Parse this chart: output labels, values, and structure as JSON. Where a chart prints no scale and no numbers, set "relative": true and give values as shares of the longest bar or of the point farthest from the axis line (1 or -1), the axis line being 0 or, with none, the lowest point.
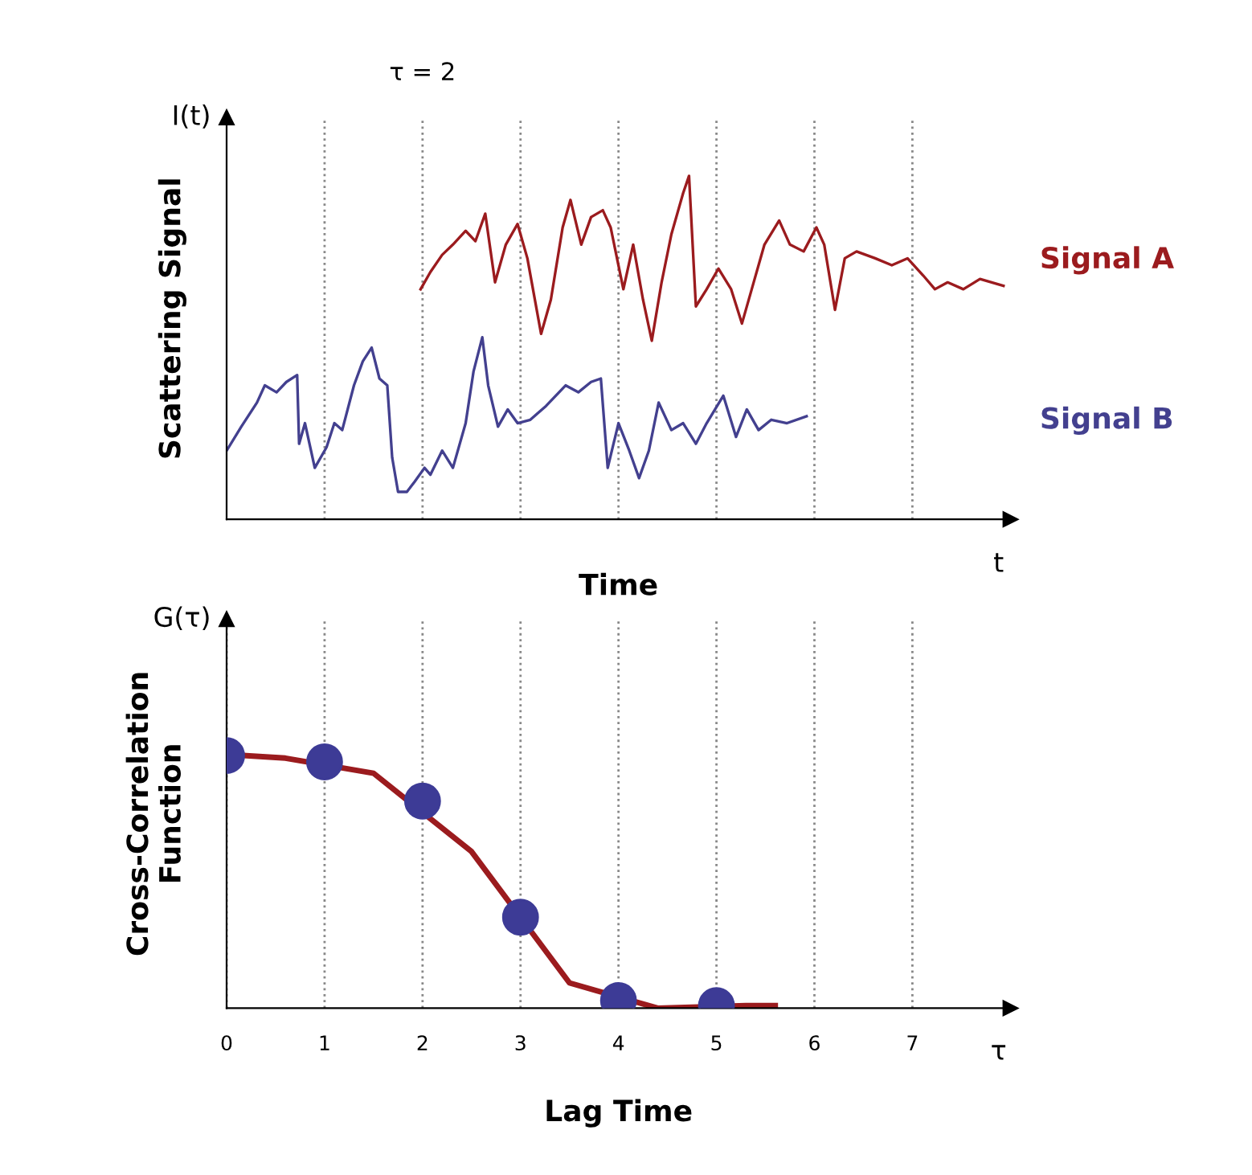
{
  "chart_data": [
    {
      "type": "line",
      "relative": true,
      "xlabel": "Time",
      "ylabel": "Scattering Signal",
      "annotations": [
        "I(t)",
        "t",
        "τ = 2"
      ],
      "xlim": [
        0,
        8
      ],
      "xticks": [
        {
          "value": 1,
          "label": null
        },
        {
          "value": 2,
          "label": null
        },
        {
          "value": 3,
          "label": null
        },
        {
          "value": 4,
          "label": null
        },
        {
          "value": 5,
          "label": null
        },
        {
          "value": 6,
          "label": null
        },
        {
          "value": 7,
          "label": null
        }
      ],
      "tick_labels": false,
      "grid": "x",
      "legend": false,
      "line_style": "solid",
      "series": [
        {
          "name": "Signal A",
          "color": "#9b1b1e",
          "x": [
            1.98,
            2.08,
            2.2,
            2.31,
            2.44,
            2.54,
            2.64,
            2.74,
            2.85,
            2.97,
            3.07,
            3.21,
            3.31,
            3.43,
            3.51,
            3.62,
            3.72,
            3.84,
            3.92,
            4.05,
            4.15,
            4.25,
            4.34,
            4.44,
            4.54,
            4.66,
            4.72,
            4.79,
            4.9,
            5.02,
            5.15,
            5.26,
            5.36,
            5.49,
            5.64,
            5.75,
            5.89,
            6.02,
            6.1,
            6.21,
            6.31,
            6.43,
            6.62,
            6.79,
            6.95,
            7.11,
            7.23,
            7.36,
            7.52,
            7.69,
            7.93
          ],
          "values": [
            0.67,
            0.72,
            0.77,
            0.8,
            0.84,
            0.81,
            0.89,
            0.69,
            0.8,
            0.86,
            0.76,
            0.54,
            0.64,
            0.85,
            0.93,
            0.8,
            0.88,
            0.9,
            0.85,
            0.67,
            0.8,
            0.64,
            0.52,
            0.69,
            0.83,
            0.95,
            1,
            0.62,
            0.67,
            0.73,
            0.67,
            0.57,
            0.67,
            0.8,
            0.87,
            0.8,
            0.78,
            0.85,
            0.8,
            0.61,
            0.76,
            0.78,
            0.76,
            0.74,
            0.76,
            0.71,
            0.67,
            0.69,
            0.67,
            0.7,
            0.68
          ]
        },
        {
          "name": "Signal B",
          "color": "#43408f",
          "x": [
            0,
            0.15,
            0.31,
            0.39,
            0.51,
            0.61,
            0.72,
            0.74,
            0.8,
            0.9,
            1.02,
            1.1,
            1.18,
            1.3,
            1.39,
            1.48,
            1.56,
            1.64,
            1.69,
            1.75,
            1.84,
            1.92,
            2.02,
            2.08,
            2.2,
            2.31,
            2.44,
            2.52,
            2.61,
            2.67,
            2.77,
            2.87,
            2.97,
            3.1,
            3.26,
            3.46,
            3.59,
            3.72,
            3.82,
            3.89,
            4.0,
            4.11,
            4.21,
            4.31,
            4.41,
            4.54,
            4.66,
            4.79,
            4.9,
            5.07,
            5.2,
            5.31,
            5.43,
            5.56,
            5.72,
            5.92
          ],
          "values": [
            0.2,
            0.27,
            0.34,
            0.39,
            0.37,
            0.4,
            0.42,
            0.22,
            0.28,
            0.15,
            0.21,
            0.28,
            0.26,
            0.39,
            0.46,
            0.5,
            0.41,
            0.39,
            0.18,
            0.08,
            0.08,
            0.11,
            0.15,
            0.13,
            0.2,
            0.15,
            0.28,
            0.43,
            0.53,
            0.39,
            0.27,
            0.32,
            0.28,
            0.29,
            0.33,
            0.39,
            0.37,
            0.4,
            0.41,
            0.15,
            0.28,
            0.2,
            0.12,
            0.2,
            0.34,
            0.26,
            0.28,
            0.22,
            0.28,
            0.36,
            0.24,
            0.32,
            0.26,
            0.29,
            0.28,
            0.3
          ]
        }
      ]
    },
    {
      "type": "scatter",
      "relative": true,
      "xlabel": "Lag Time",
      "ylabel": "Cross-Correlation\nFunction",
      "annotations": [
        "G(τ)",
        "τ"
      ],
      "xlim": [
        0,
        8
      ],
      "xticks": [
        0,
        1,
        2,
        3,
        4,
        5,
        6,
        7
      ],
      "tick_labels": "x",
      "grid": "x",
      "legend": false,
      "series": [
        {
          "type": "line",
          "color": "#9b1b1e",
          "x": [
            0.2,
            0.6,
            1.5,
            2.5,
            3.5,
            4.4,
            5.3,
            5.6
          ],
          "values": [
            1,
            0.99,
            0.93,
            0.62,
            0.1,
            0,
            0.01,
            0.01
          ]
        },
        {
          "type": "scatter",
          "marker": "circle",
          "color": "#3d3b96",
          "x": [
            0,
            1,
            2,
            3,
            4,
            5
          ],
          "values": [
            1,
            0.975,
            0.82,
            0.36,
            0.03,
            0.01
          ]
        }
      ]
    }
  ]
}
